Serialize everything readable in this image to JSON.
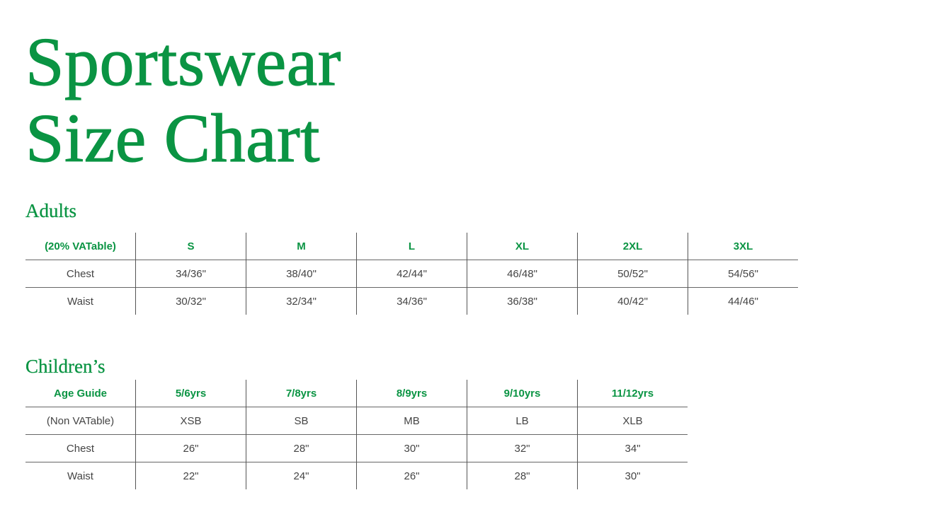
{
  "title_line1": "Sportswear",
  "title_line2": "Size Chart",
  "accent_color": "#0a9443",
  "adults": {
    "heading": "Adults",
    "header": [
      "(20% VATable)",
      "S",
      "M",
      "L",
      "XL",
      "2XL",
      "3XL"
    ],
    "rows": [
      [
        "Chest",
        "34/36\"",
        "38/40\"",
        "42/44\"",
        "46/48\"",
        "50/52\"",
        "54/56\""
      ],
      [
        "Waist",
        "30/32\"",
        "32/34\"",
        "34/36\"",
        "36/38\"",
        "40/42\"",
        "44/46\""
      ]
    ]
  },
  "children": {
    "heading": "Children’s",
    "header": [
      "Age Guide",
      "5/6yrs",
      "7/8yrs",
      "8/9yrs",
      "9/10yrs",
      "11/12yrs"
    ],
    "rows": [
      [
        "(Non VATable)",
        "XSB",
        "SB",
        "MB",
        "LB",
        "XLB"
      ],
      [
        "Chest",
        "26\"",
        "28\"",
        "30\"",
        "32\"",
        "34\""
      ],
      [
        "Waist",
        "22\"",
        "24\"",
        "26\"",
        "28\"",
        "30\""
      ]
    ]
  }
}
